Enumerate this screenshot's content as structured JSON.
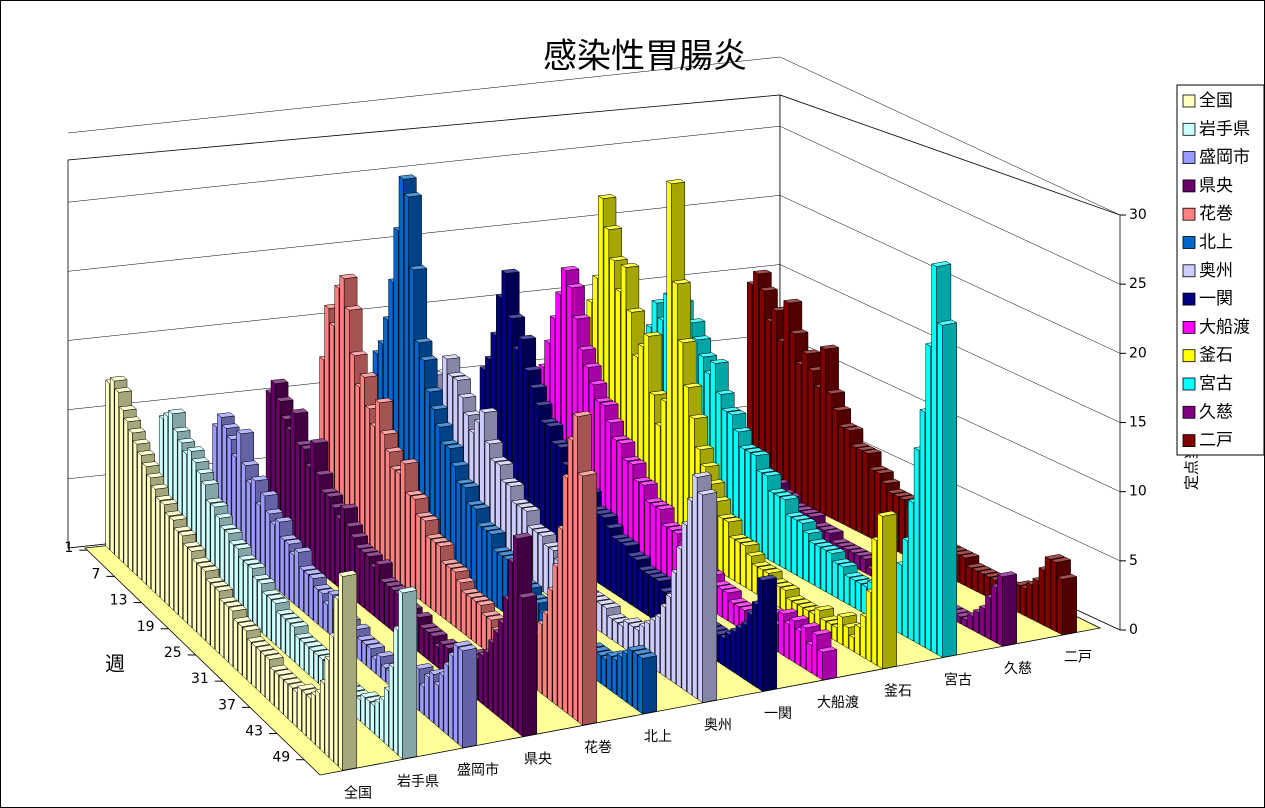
{
  "chart_data": {
    "type": "bar3d",
    "title": "感染性胃腸炎",
    "x_label": "週",
    "y_label": "定点当たり患者数",
    "categories": [
      1,
      null,
      null,
      null,
      null,
      null,
      7,
      null,
      null,
      null,
      null,
      null,
      13,
      null,
      null,
      null,
      null,
      null,
      19,
      null,
      null,
      null,
      null,
      null,
      25,
      null,
      null,
      null,
      null,
      null,
      31,
      null,
      null,
      null,
      null,
      null,
      37,
      null,
      null,
      null,
      null,
      null,
      43,
      null,
      null,
      null,
      null,
      null,
      49,
      null,
      null,
      null
    ],
    "ylim": [
      0,
      30
    ],
    "yticks": [
      0,
      5,
      10,
      15,
      20,
      25,
      30
    ],
    "grid": true,
    "legend": "right",
    "series": [
      {
        "name": "全国",
        "color": "#ffffc0",
        "values": [
          12,
          12.5,
          12,
          11,
          10.5,
          10,
          9.5,
          9,
          8.5,
          8,
          7.5,
          7,
          7,
          6.5,
          6.5,
          6,
          6,
          5.5,
          5.5,
          5,
          5,
          5,
          4.5,
          4.5,
          4.5,
          4,
          4,
          4,
          3.5,
          3.5,
          3.5,
          3,
          3,
          3,
          3,
          3,
          2.5,
          2.5,
          2.5,
          2.5,
          2.5,
          2.5,
          3,
          3,
          3,
          3.5,
          4,
          5,
          7,
          9,
          12,
          14
        ]
      },
      {
        "name": "岩手県",
        "color": "#ccffff",
        "values": [
          9,
          9.5,
          10,
          9,
          8.5,
          8,
          8.5,
          8,
          7.5,
          7,
          6,
          6,
          5.5,
          5,
          5,
          4.5,
          4.5,
          4,
          4,
          4,
          3.5,
          3.5,
          3,
          3,
          3,
          2.5,
          2.5,
          2.5,
          2.5,
          2,
          2,
          2,
          2,
          2,
          2,
          2,
          1.5,
          1.5,
          1.5,
          1.5,
          1.5,
          1.5,
          1.5,
          2,
          2,
          2,
          2.5,
          3,
          4,
          6,
          9,
          12
        ]
      },
      {
        "name": "盛岡市",
        "color": "#9999ff",
        "values": [
          8,
          9,
          8.5,
          8,
          7,
          9,
          7,
          6,
          6.5,
          5,
          6,
          5,
          4.5,
          5,
          4,
          4,
          3.5,
          4,
          3,
          3,
          3,
          2.5,
          2.5,
          2,
          3,
          2,
          2,
          2,
          1.5,
          2,
          1.5,
          1.5,
          1.5,
          1,
          1.5,
          1,
          1,
          1,
          1.5,
          1,
          1.5,
          2,
          3,
          2,
          3,
          3.5,
          3,
          4,
          5,
          6,
          7,
          7
        ]
      },
      {
        "name": "県央",
        "color": "#660066",
        "values": [
          10,
          11,
          10,
          9,
          8.5,
          10,
          8,
          8,
          7,
          9,
          7,
          6,
          6,
          5.5,
          5,
          6,
          5,
          4.5,
          4,
          4,
          4,
          3.5,
          4,
          3,
          3,
          3,
          3,
          2.5,
          2.5,
          2,
          2.5,
          2,
          2,
          2,
          1.5,
          2,
          2,
          1.5,
          2,
          2,
          2.5,
          3,
          3,
          3.5,
          4,
          5,
          6,
          7,
          9,
          12,
          14,
          10
        ]
      },
      {
        "name": "花巻",
        "color": "#ff8080",
        "values": [
          12,
          16,
          15,
          18,
          19,
          17,
          14,
          12,
          13,
          11,
          10,
          12,
          10,
          9,
          8,
          8,
          9,
          7,
          7,
          6,
          6,
          5,
          5,
          5,
          4,
          4,
          4,
          3.5,
          3,
          3,
          3,
          3,
          2.5,
          2.5,
          2,
          2,
          2,
          2.5,
          2,
          2,
          3,
          3.5,
          4,
          5,
          6,
          8,
          10,
          13,
          17,
          20,
          22,
          18
        ]
      },
      {
        "name": "北上",
        "color": "#0066cc",
        "values": [
          12,
          13,
          15,
          18,
          22,
          26,
          25,
          20,
          15,
          14,
          12,
          11,
          10,
          9,
          9,
          8,
          7,
          7,
          6,
          6,
          5,
          5,
          5,
          4,
          4,
          4,
          3,
          3,
          3,
          3,
          2.5,
          2.5,
          2,
          2,
          2,
          2,
          1.5,
          1.5,
          1.5,
          1.5,
          1.5,
          2,
          2,
          2,
          2,
          2.5,
          2.5,
          3,
          3.5,
          4,
          4,
          4
        ]
      },
      {
        "name": "奥州",
        "color": "#ccccff",
        "values": [
          10,
          9,
          9,
          12,
          11,
          11,
          10,
          9,
          8,
          9,
          10,
          8,
          7,
          7,
          6,
          6,
          5,
          5,
          5,
          4,
          4,
          4,
          3.5,
          3.5,
          3,
          3,
          3,
          2.5,
          2.5,
          2,
          2,
          2,
          2,
          2,
          1.5,
          1.5,
          1.5,
          2,
          2,
          2,
          2.5,
          3,
          3.5,
          4,
          5,
          6,
          8,
          10,
          12,
          14,
          16,
          15
        ]
      },
      {
        "name": "一関",
        "color": "#000080",
        "values": [
          10,
          11,
          13,
          16,
          18,
          15,
          13,
          14,
          12,
          11,
          10,
          9,
          9,
          8,
          8,
          7,
          7,
          6,
          6,
          6,
          5,
          5,
          5,
          4.5,
          4,
          4,
          4,
          3.5,
          3.5,
          3,
          3,
          3,
          3,
          2.5,
          2.5,
          2.5,
          2,
          2,
          2,
          2,
          2,
          2,
          2,
          2,
          2,
          2.5,
          3,
          3.5,
          4,
          5,
          6,
          8
        ]
      },
      {
        "name": "大船渡",
        "color": "#ff00ff",
        "values": [
          8,
          10,
          12,
          14,
          16,
          18,
          17,
          15,
          13,
          12,
          11,
          10,
          10,
          9,
          8,
          8,
          7,
          7,
          6,
          6,
          5,
          5,
          5,
          4,
          4,
          4,
          3.5,
          3,
          3,
          3,
          2.5,
          2.5,
          2,
          2,
          2,
          1.5,
          1.5,
          1.5,
          1.5,
          1.5,
          2,
          2,
          2.5,
          2,
          3,
          2.5,
          3,
          2.5,
          3,
          2,
          3,
          2
        ]
      },
      {
        "name": "釜石",
        "color": "#ffff00",
        "values": [
          14,
          16,
          22,
          20,
          18,
          16,
          18,
          15,
          12,
          13,
          14,
          10,
          8,
          10,
          26,
          19,
          15,
          12,
          10,
          8,
          7,
          6,
          5,
          4,
          4,
          3,
          3,
          3,
          2.5,
          2,
          2,
          2,
          1.5,
          1.5,
          1.5,
          1,
          1,
          1,
          1,
          1,
          1.5,
          1,
          1,
          1,
          2,
          1.5,
          1,
          2,
          3,
          5,
          9,
          11
        ]
      },
      {
        "name": "宮古",
        "color": "#00ffff",
        "values": [
          10,
          12,
          14,
          13,
          15,
          16,
          15,
          12,
          14,
          13,
          12,
          11,
          12,
          10,
          9,
          9,
          8,
          7,
          7,
          7,
          6,
          6,
          5,
          5,
          5,
          4,
          4,
          4,
          3.5,
          3,
          3,
          3,
          3,
          2.5,
          2.5,
          2,
          2,
          2,
          2,
          2.5,
          2.5,
          3,
          3.5,
          4,
          5,
          7,
          10,
          14,
          17,
          22,
          28,
          24
        ]
      },
      {
        "name": "久慈",
        "color": "#800080",
        "values": [
          5,
          6,
          5,
          4,
          5,
          4,
          4.5,
          4,
          4,
          3.5,
          3.5,
          3,
          3,
          3,
          2.5,
          2.5,
          2,
          2,
          2,
          2,
          1.5,
          1.5,
          1.5,
          1,
          1,
          1,
          1,
          1,
          1,
          0.5,
          0.5,
          0.5,
          0.5,
          0.5,
          0.5,
          0.5,
          0.5,
          0.5,
          0.5,
          0.5,
          0.5,
          0.5,
          0.5,
          0.5,
          0.5,
          0.5,
          1,
          1.5,
          2,
          3,
          4,
          5
        ]
      },
      {
        "name": "二戸",
        "color": "#800000",
        "values": [
          14,
          15,
          14,
          12,
          13,
          11,
          14,
          12,
          10,
          11,
          10,
          9,
          12,
          9,
          8,
          7,
          7,
          6,
          6,
          6,
          5,
          5,
          4.5,
          4,
          4,
          4,
          3.5,
          3,
          3,
          3,
          2.5,
          2.5,
          2,
          2,
          2,
          2,
          1.5,
          1.5,
          1.5,
          1.5,
          1.5,
          1.5,
          1.5,
          1.5,
          2,
          2,
          2.5,
          3,
          4,
          5,
          5,
          4
        ]
      }
    ]
  }
}
